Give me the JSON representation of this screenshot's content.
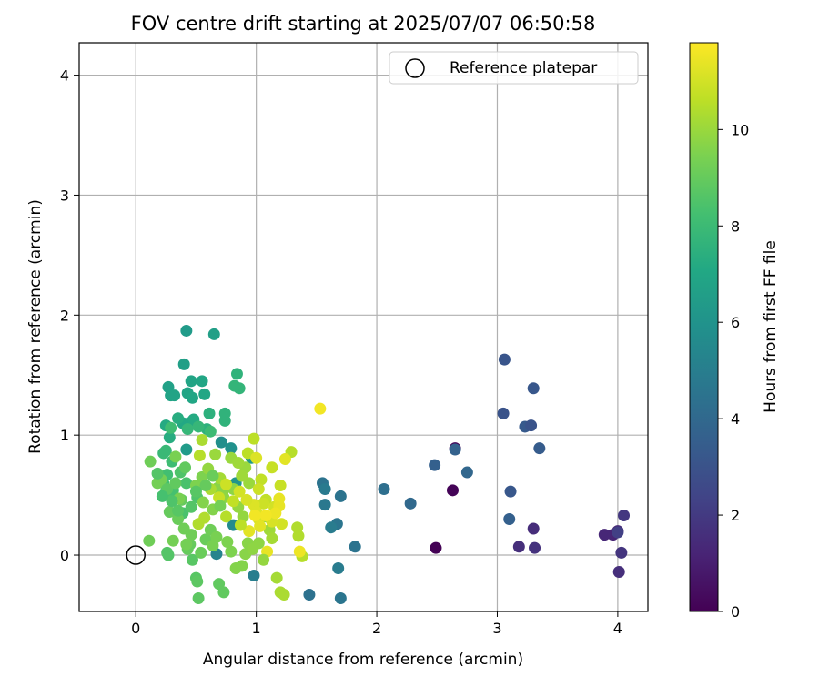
{
  "chart_data": {
    "type": "scatter",
    "title": "FOV centre drift starting at 2025/07/07 06:50:58",
    "xlabel": "Angular distance from reference (arcmin)",
    "ylabel": "Rotation from reference (arcmin)",
    "xlim": [
      -0.47,
      4.25
    ],
    "ylim": [
      -0.47,
      4.27
    ],
    "xticks": [
      "0",
      "1",
      "2",
      "3",
      "4"
    ],
    "yticks": [
      "0",
      "1",
      "2",
      "3",
      "4"
    ],
    "grid": true,
    "legend": {
      "placement": "upper right",
      "entries": [
        "Reference platepar"
      ]
    },
    "colorbar": {
      "label": "Hours from first FF file",
      "range": [
        0,
        11.8
      ],
      "ticks": [
        "0",
        "2",
        "4",
        "6",
        "8",
        "10"
      ],
      "colormap": "viridis"
    },
    "reference_point": {
      "x": 0,
      "y": 0
    },
    "series": [
      {
        "points": [
          [
            2.49,
            0.06,
            0.05
          ],
          [
            2.63,
            0.54,
            0.1
          ],
          [
            2.65,
            0.89,
            0.2
          ],
          [
            3.96,
            0.17,
            1.2
          ],
          [
            4.0,
            0.2,
            1.4
          ],
          [
            4.01,
            -0.14,
            1.6
          ],
          [
            4.03,
            0.02,
            1.8
          ],
          [
            4.05,
            0.33,
            1.9
          ],
          [
            3.3,
            0.22,
            1.5
          ],
          [
            3.31,
            0.06,
            1.7
          ],
          [
            3.18,
            0.07,
            1.6
          ],
          [
            4.0,
            0.19,
            2.2
          ],
          [
            3.89,
            0.17,
            1.3
          ],
          [
            3.06,
            1.63,
            3.1
          ],
          [
            3.05,
            1.18,
            3.0
          ],
          [
            3.3,
            1.39,
            3.2
          ],
          [
            3.23,
            1.07,
            3.3
          ],
          [
            3.28,
            1.08,
            3.0
          ],
          [
            3.35,
            0.89,
            3.4
          ],
          [
            3.11,
            0.53,
            3.2
          ],
          [
            3.1,
            0.3,
            3.6
          ],
          [
            2.48,
            0.75,
            3.6
          ],
          [
            2.65,
            0.88,
            3.7
          ],
          [
            2.75,
            0.69,
            3.9
          ],
          [
            2.28,
            0.43,
            4.0
          ],
          [
            2.06,
            0.55,
            4.3
          ],
          [
            1.82,
            0.07,
            4.5
          ],
          [
            1.7,
            0.49,
            4.5
          ],
          [
            1.67,
            0.26,
            4.6
          ],
          [
            1.55,
            0.6,
            4.5
          ],
          [
            1.57,
            0.55,
            4.8
          ],
          [
            1.57,
            0.42,
            4.7
          ],
          [
            1.62,
            0.23,
            4.9
          ],
          [
            1.68,
            -0.11,
            4.9
          ],
          [
            1.7,
            -0.36,
            4.6
          ],
          [
            1.44,
            -0.33,
            4.4
          ],
          [
            0.98,
            -0.17,
            5.0
          ],
          [
            0.67,
            0.01,
            5.3
          ],
          [
            0.81,
            0.25,
            5.6
          ],
          [
            0.71,
            0.94,
            5.8
          ],
          [
            0.79,
            0.89,
            5.9
          ],
          [
            0.83,
            0.6,
            6.1
          ],
          [
            0.96,
            0.81,
            6.3
          ],
          [
            0.42,
            0.88,
            6.4
          ],
          [
            0.42,
            1.87,
            6.4
          ],
          [
            0.65,
            1.84,
            6.6
          ],
          [
            0.4,
            1.59,
            6.6
          ],
          [
            0.27,
            1.4,
            6.7
          ],
          [
            0.29,
            1.33,
            6.8
          ],
          [
            0.32,
            1.33,
            6.8
          ],
          [
            0.46,
            1.45,
            6.9
          ],
          [
            0.55,
            1.45,
            7.0
          ],
          [
            0.43,
            1.35,
            6.9
          ],
          [
            0.47,
            1.31,
            7.0
          ],
          [
            0.57,
            1.34,
            7.0
          ],
          [
            0.44,
            1.1,
            7.1
          ],
          [
            0.39,
            1.1,
            7.1
          ],
          [
            0.48,
            1.13,
            7.2
          ],
          [
            0.25,
            1.08,
            7.2
          ],
          [
            0.28,
            0.98,
            7.3
          ],
          [
            0.35,
            1.14,
            7.3
          ],
          [
            0.59,
            1.05,
            7.5
          ],
          [
            0.61,
            1.18,
            7.5
          ],
          [
            0.74,
            1.12,
            7.6
          ],
          [
            0.74,
            1.18,
            7.6
          ],
          [
            0.84,
            1.51,
            7.6
          ],
          [
            0.86,
            1.39,
            7.7
          ],
          [
            0.82,
            1.41,
            7.7
          ],
          [
            0.43,
            1.05,
            7.8
          ],
          [
            0.52,
            1.07,
            7.8
          ],
          [
            0.25,
            0.87,
            7.9
          ],
          [
            0.23,
            0.85,
            7.9
          ],
          [
            0.62,
            1.03,
            8.0
          ],
          [
            0.29,
            1.06,
            8.1
          ],
          [
            0.3,
            0.78,
            8.1
          ],
          [
            0.26,
            0.67,
            8.2
          ],
          [
            0.23,
            0.6,
            8.2
          ],
          [
            0.25,
            0.53,
            8.3
          ],
          [
            0.31,
            0.54,
            8.3
          ],
          [
            0.39,
            0.35,
            8.4
          ],
          [
            0.42,
            0.6,
            8.4
          ],
          [
            0.37,
            0.69,
            8.5
          ],
          [
            0.51,
            0.48,
            8.5
          ],
          [
            0.26,
            0.02,
            8.6
          ],
          [
            0.27,
            0.0,
            8.6
          ],
          [
            0.47,
            -0.04,
            8.7
          ],
          [
            0.5,
            -0.19,
            8.7
          ],
          [
            0.51,
            -0.22,
            8.8
          ],
          [
            0.52,
            -0.36,
            8.8
          ],
          [
            0.69,
            -0.24,
            8.9
          ],
          [
            0.73,
            -0.31,
            8.9
          ],
          [
            0.38,
            0.46,
            9.0
          ],
          [
            0.43,
            0.05,
            9.0
          ],
          [
            0.45,
            0.09,
            9.0
          ],
          [
            0.54,
            0.02,
            9.1
          ],
          [
            0.58,
            0.13,
            9.1
          ],
          [
            0.62,
            0.21,
            9.2
          ],
          [
            0.11,
            0.12,
            9.2
          ],
          [
            0.12,
            0.78,
            9.2
          ],
          [
            0.18,
            0.6,
            9.3
          ],
          [
            0.21,
            0.63,
            9.3
          ],
          [
            0.33,
            0.82,
            9.4
          ],
          [
            0.36,
            0.47,
            9.4
          ],
          [
            0.5,
            0.58,
            9.5
          ],
          [
            0.55,
            0.65,
            9.5
          ],
          [
            0.56,
            0.44,
            9.6
          ],
          [
            0.64,
            0.38,
            9.6
          ],
          [
            0.68,
            0.56,
            9.7
          ],
          [
            0.72,
            0.52,
            9.7
          ],
          [
            0.73,
            0.48,
            9.8
          ],
          [
            0.81,
            0.55,
            9.8
          ],
          [
            0.85,
            0.4,
            9.9
          ],
          [
            0.89,
            0.32,
            9.9
          ],
          [
            0.91,
            0.73,
            10.0
          ],
          [
            0.94,
            0.6,
            10.0
          ],
          [
            1.08,
            0.32,
            10.1
          ],
          [
            1.11,
            0.21,
            10.1
          ],
          [
            1.13,
            0.14,
            10.2
          ],
          [
            1.17,
            -0.19,
            10.2
          ],
          [
            1.2,
            -0.31,
            10.3
          ],
          [
            1.23,
            -0.33,
            10.3
          ],
          [
            1.34,
            0.23,
            10.4
          ],
          [
            1.35,
            0.16,
            10.4
          ],
          [
            1.29,
            0.86,
            10.5
          ],
          [
            1.38,
            -0.01,
            10.5
          ],
          [
            0.98,
            0.97,
            10.6
          ],
          [
            0.93,
            0.85,
            10.6
          ],
          [
            1.04,
            0.63,
            10.7
          ],
          [
            1.08,
            0.46,
            10.7
          ],
          [
            1.13,
            0.73,
            10.8
          ],
          [
            1.2,
            0.58,
            10.8
          ],
          [
            1.02,
            0.55,
            10.9
          ],
          [
            1.06,
            0.43,
            10.9
          ],
          [
            1.15,
            0.4,
            11.0
          ],
          [
            1.21,
            0.26,
            11.0
          ],
          [
            1.13,
            0.28,
            11.1
          ],
          [
            1.02,
            0.3,
            11.1
          ],
          [
            0.98,
            0.42,
            11.2
          ],
          [
            1.0,
            0.36,
            11.2
          ],
          [
            1.03,
            0.24,
            11.3
          ],
          [
            0.94,
            0.2,
            11.3
          ],
          [
            1.19,
            0.41,
            11.4
          ],
          [
            1.09,
            0.03,
            11.4
          ],
          [
            1.36,
            0.03,
            11.5
          ],
          [
            1.16,
            0.35,
            11.5
          ],
          [
            1.53,
            1.22,
            11.6
          ],
          [
            1.08,
            0.33,
            11.6
          ],
          [
            0.99,
            0.33,
            11.6
          ],
          [
            0.18,
            0.68,
            8.6
          ],
          [
            0.26,
            0.55,
            8.8
          ],
          [
            0.33,
            0.6,
            8.9
          ],
          [
            0.28,
            0.36,
            9.0
          ],
          [
            0.35,
            0.3,
            9.1
          ],
          [
            0.4,
            0.22,
            9.2
          ],
          [
            0.46,
            0.17,
            9.2
          ],
          [
            0.31,
            0.12,
            9.3
          ],
          [
            0.42,
            0.09,
            9.3
          ],
          [
            0.64,
            0.08,
            9.4
          ],
          [
            0.67,
            0.15,
            9.4
          ],
          [
            0.76,
            0.11,
            9.5
          ],
          [
            0.79,
            0.03,
            9.5
          ],
          [
            0.83,
            -0.11,
            9.6
          ],
          [
            0.88,
            -0.09,
            9.6
          ],
          [
            0.91,
            0.01,
            9.7
          ],
          [
            0.93,
            0.1,
            9.7
          ],
          [
            0.97,
            0.05,
            9.8
          ],
          [
            1.02,
            0.1,
            9.8
          ],
          [
            1.06,
            -0.04,
            9.9
          ],
          [
            0.6,
            0.72,
            9.9
          ],
          [
            0.66,
            0.84,
            10.0
          ],
          [
            0.79,
            0.81,
            10.0
          ],
          [
            0.85,
            0.77,
            10.1
          ],
          [
            0.88,
            0.66,
            10.1
          ],
          [
            0.7,
            0.64,
            10.2
          ],
          [
            0.62,
            0.55,
            10.3
          ],
          [
            0.57,
            0.31,
            10.4
          ],
          [
            0.52,
            0.26,
            10.4
          ],
          [
            0.75,
            0.32,
            10.5
          ],
          [
            0.87,
            0.25,
            10.6
          ],
          [
            0.81,
            0.45,
            10.7
          ],
          [
            0.55,
            0.96,
            10.3
          ],
          [
            0.53,
            0.83,
            10.5
          ],
          [
            0.69,
            0.48,
            10.8
          ],
          [
            0.75,
            0.59,
            10.9
          ],
          [
            0.86,
            0.53,
            11.0
          ],
          [
            0.92,
            0.46,
            11.1
          ],
          [
            1.0,
            0.81,
            11.2
          ],
          [
            1.24,
            0.8,
            11.3
          ],
          [
            1.19,
            0.47,
            11.4
          ],
          [
            0.58,
            0.58,
            9.0
          ],
          [
            0.64,
            0.66,
            9.1
          ],
          [
            0.7,
            0.41,
            9.3
          ],
          [
            0.46,
            0.4,
            8.6
          ],
          [
            0.5,
            0.53,
            8.7
          ],
          [
            0.41,
            0.73,
            8.9
          ],
          [
            0.35,
            0.37,
            8.7
          ],
          [
            0.3,
            0.45,
            8.5
          ],
          [
            0.22,
            0.49,
            8.3
          ]
        ]
      }
    ]
  }
}
